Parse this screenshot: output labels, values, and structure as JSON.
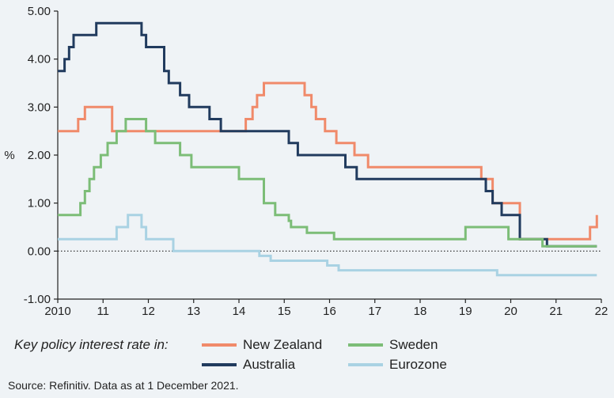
{
  "chart_data": {
    "type": "line",
    "ylabel": "%",
    "xlim": [
      2010,
      2022
    ],
    "ylim": [
      -1.0,
      5.0
    ],
    "y_ticks": [
      "-1.00",
      "0.00",
      "1.00",
      "2.00",
      "3.00",
      "4.00",
      "5.00"
    ],
    "x_ticks": [
      "2010",
      "11",
      "12",
      "13",
      "14",
      "15",
      "16",
      "17",
      "18",
      "19",
      "20",
      "21",
      "22"
    ],
    "zero_line": "dotted",
    "grid": false,
    "legend_placement": "bottom",
    "series": [
      {
        "name": "New Zealand",
        "color": "#f08a6a",
        "points": [
          [
            2010.0,
            2.5
          ],
          [
            2010.45,
            2.75
          ],
          [
            2010.6,
            3.0
          ],
          [
            2011.2,
            2.5
          ],
          [
            2014.15,
            2.75
          ],
          [
            2014.3,
            3.0
          ],
          [
            2014.4,
            3.25
          ],
          [
            2014.55,
            3.5
          ],
          [
            2015.45,
            3.25
          ],
          [
            2015.6,
            3.0
          ],
          [
            2015.7,
            2.75
          ],
          [
            2015.9,
            2.5
          ],
          [
            2016.15,
            2.25
          ],
          [
            2016.55,
            2.0
          ],
          [
            2016.85,
            1.75
          ],
          [
            2019.35,
            1.5
          ],
          [
            2019.6,
            1.0
          ],
          [
            2020.2,
            0.25
          ],
          [
            2021.75,
            0.5
          ],
          [
            2021.9,
            0.75
          ]
        ]
      },
      {
        "name": "Australia",
        "color": "#213b5e",
        "points": [
          [
            2010.0,
            3.75
          ],
          [
            2010.15,
            4.0
          ],
          [
            2010.25,
            4.25
          ],
          [
            2010.35,
            4.5
          ],
          [
            2010.85,
            4.75
          ],
          [
            2011.85,
            4.5
          ],
          [
            2011.95,
            4.25
          ],
          [
            2012.35,
            3.75
          ],
          [
            2012.45,
            3.5
          ],
          [
            2012.7,
            3.25
          ],
          [
            2012.9,
            3.0
          ],
          [
            2013.35,
            2.75
          ],
          [
            2013.6,
            2.5
          ],
          [
            2015.1,
            2.25
          ],
          [
            2015.3,
            2.0
          ],
          [
            2016.35,
            1.75
          ],
          [
            2016.6,
            1.5
          ],
          [
            2019.45,
            1.25
          ],
          [
            2019.6,
            1.0
          ],
          [
            2019.8,
            0.75
          ],
          [
            2020.2,
            0.25
          ],
          [
            2020.8,
            0.1
          ],
          [
            2021.9,
            0.1
          ]
        ]
      },
      {
        "name": "Sweden",
        "color": "#7cbd77",
        "points": [
          [
            2010.0,
            0.75
          ],
          [
            2010.5,
            1.0
          ],
          [
            2010.6,
            1.25
          ],
          [
            2010.7,
            1.5
          ],
          [
            2010.8,
            1.75
          ],
          [
            2010.95,
            2.0
          ],
          [
            2011.1,
            2.25
          ],
          [
            2011.3,
            2.5
          ],
          [
            2011.5,
            2.75
          ],
          [
            2011.95,
            2.5
          ],
          [
            2012.15,
            2.25
          ],
          [
            2012.7,
            2.0
          ],
          [
            2012.95,
            1.75
          ],
          [
            2014.0,
            1.5
          ],
          [
            2014.55,
            1.0
          ],
          [
            2014.8,
            0.75
          ],
          [
            2015.1,
            0.63
          ],
          [
            2015.15,
            0.5
          ],
          [
            2015.5,
            0.38
          ],
          [
            2016.1,
            0.25
          ],
          [
            2019.0,
            0.5
          ],
          [
            2019.95,
            0.25
          ],
          [
            2020.7,
            0.1
          ],
          [
            2021.9,
            0.1
          ]
        ]
      },
      {
        "name": "Eurozone",
        "color": "#a9d2e3",
        "points": [
          [
            2010.0,
            0.25
          ],
          [
            2011.3,
            0.5
          ],
          [
            2011.55,
            0.75
          ],
          [
            2011.85,
            0.5
          ],
          [
            2011.95,
            0.25
          ],
          [
            2012.55,
            0.0
          ],
          [
            2014.45,
            -0.1
          ],
          [
            2014.7,
            -0.2
          ],
          [
            2015.95,
            -0.3
          ],
          [
            2016.2,
            -0.4
          ],
          [
            2019.7,
            -0.5
          ],
          [
            2021.9,
            -0.5
          ]
        ]
      }
    ]
  },
  "legend": {
    "title": "Key policy interest rate in:",
    "items": [
      {
        "label": "New Zealand",
        "color": "#f08a6a"
      },
      {
        "label": "Sweden",
        "color": "#7cbd77"
      },
      {
        "label": "Australia",
        "color": "#213b5e"
      },
      {
        "label": "Eurozone",
        "color": "#a9d2e3"
      }
    ]
  },
  "source": "Source: Refinitiv. Data as at 1 December 2021."
}
